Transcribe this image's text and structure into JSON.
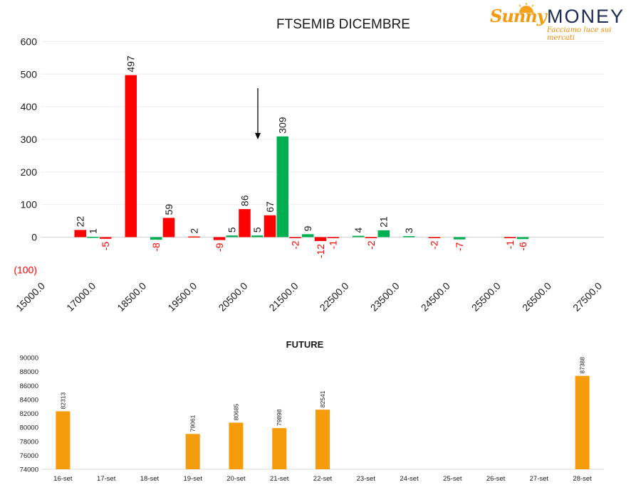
{
  "logo": {
    "brand_left": "Sunny",
    "brand_right": "MONEY",
    "tagline": "Facciamo luce sui mercati"
  },
  "chart_data": [
    {
      "type": "bar",
      "title": "FTSEMIB DICEMBRE",
      "xlabel": "",
      "ylabel": "",
      "ylim": [
        -100,
        600
      ],
      "y_ticks": [
        "600",
        "500",
        "400",
        "300",
        "200",
        "100",
        "0",
        "(100)"
      ],
      "x_tick_labels": [
        "15000.0",
        "17000.0",
        "18500.0",
        "19500.0",
        "20500.0",
        "21500.0",
        "22500.0",
        "23500.0",
        "24500.0",
        "25500.0",
        "26500.0",
        "27500.0"
      ],
      "bars": [
        {
          "slot": 1,
          "value": 22,
          "color": "#ff0000"
        },
        {
          "slot": 2,
          "value": 1,
          "color": "#00b050"
        },
        {
          "slot": 3,
          "value": -5,
          "color": "#ff0000"
        },
        {
          "slot": 5,
          "value": 497,
          "color": "#ff0000"
        },
        {
          "slot": 7,
          "value": -8,
          "color": "#00b050"
        },
        {
          "slot": 8,
          "value": 59,
          "color": "#ff0000"
        },
        {
          "slot": 10,
          "value": 2,
          "color": "#ff0000"
        },
        {
          "slot": 12,
          "value": -9,
          "color": "#ff0000"
        },
        {
          "slot": 13,
          "value": 5,
          "color": "#00b050"
        },
        {
          "slot": 14,
          "value": 86,
          "color": "#ff0000"
        },
        {
          "slot": 15,
          "value": 5,
          "color": "#00b050"
        },
        {
          "slot": 16,
          "value": 67,
          "color": "#ff0000"
        },
        {
          "slot": 17,
          "value": 309,
          "color": "#00b050"
        },
        {
          "slot": 18,
          "value": -2,
          "color": "#ff0000"
        },
        {
          "slot": 19,
          "value": 9,
          "color": "#00b050"
        },
        {
          "slot": 20,
          "value": -12,
          "color": "#ff0000"
        },
        {
          "slot": 21,
          "value": -1,
          "color": "#ff0000"
        },
        {
          "slot": 23,
          "value": 4,
          "color": "#00b050"
        },
        {
          "slot": 24,
          "value": -2,
          "color": "#ff0000"
        },
        {
          "slot": 25,
          "value": 21,
          "color": "#00b050"
        },
        {
          "slot": 27,
          "value": 3,
          "color": "#00b050"
        },
        {
          "slot": 29,
          "value": -2,
          "color": "#ff0000"
        },
        {
          "slot": 31,
          "value": -7,
          "color": "#00b050"
        },
        {
          "slot": 35,
          "value": -1,
          "color": "#ff0000"
        },
        {
          "slot": 36,
          "value": -6,
          "color": "#00b050"
        }
      ],
      "annotation": "down-arrow",
      "grid": true
    },
    {
      "type": "bar",
      "title": "FUTURE",
      "xlabel": "",
      "ylabel": "",
      "ylim": [
        74000,
        90000
      ],
      "y_ticks": [
        "90000",
        "88000",
        "86000",
        "84000",
        "82000",
        "80000",
        "78000",
        "76000",
        "74000"
      ],
      "categories": [
        "16-set",
        "17-set",
        "18-set",
        "19-set",
        "20-set",
        "21-set",
        "22-set",
        "23-set",
        "24-set",
        "25-set",
        "26-set",
        "27-set",
        "28-set"
      ],
      "values": [
        82313,
        null,
        null,
        79061,
        80685,
        79898,
        82541,
        null,
        null,
        null,
        null,
        null,
        87388
      ],
      "color": "#f59c0c",
      "grid": false
    }
  ]
}
